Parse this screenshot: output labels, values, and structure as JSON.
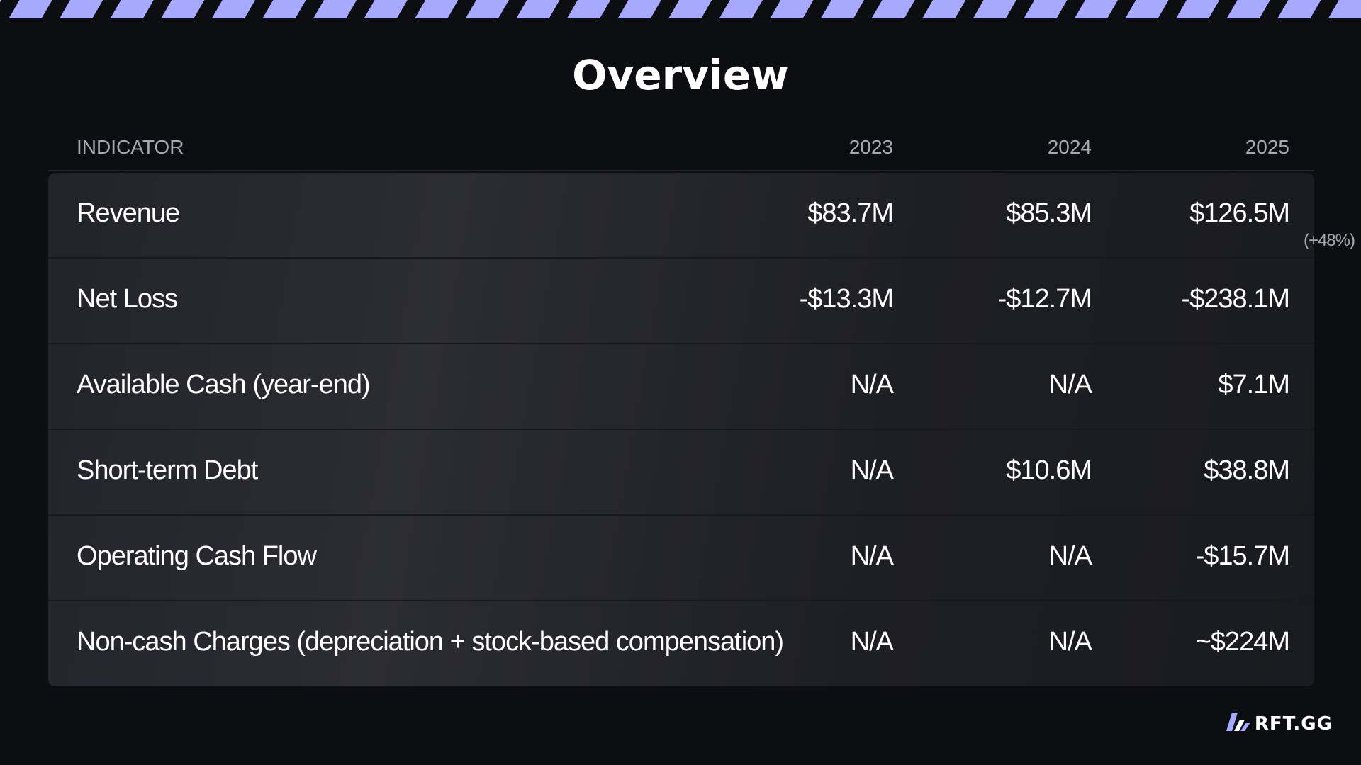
{
  "slide": {
    "title": "Overview"
  },
  "table": {
    "headers": [
      "INDICATOR",
      "2023",
      "2024",
      "2025"
    ],
    "rows": [
      {
        "label": "Revenue",
        "y2023": "$83.7M",
        "y2024": "$85.3M",
        "y2025": "$126.5M",
        "note": "(+48%)"
      },
      {
        "label": "Net Loss",
        "y2023": "-$13.3M",
        "y2024": "-$12.7M",
        "y2025": "-$238.1M",
        "note": ""
      },
      {
        "label": "Available Cash (year-end)",
        "y2023": "N/A",
        "y2024": "N/A",
        "y2025": "$7.1M",
        "note": ""
      },
      {
        "label": "Short-term Debt",
        "y2023": "N/A",
        "y2024": "$10.6M",
        "y2025": "$38.8M",
        "note": ""
      },
      {
        "label": "Operating Cash Flow",
        "y2023": "N/A",
        "y2024": "N/A",
        "y2025": "-$15.7M",
        "note": ""
      },
      {
        "label": "Non-cash Charges (depreciation + stock-based compensation)",
        "y2023": "N/A",
        "y2024": "N/A",
        "y2025": "~$224M",
        "note": ""
      }
    ]
  },
  "brand": {
    "name": "RFT.GG",
    "icon": "rft-logo-icon"
  },
  "colors": {
    "accent": "#a7a9ff",
    "background": "#0d0e12",
    "muted_text": "#a8a9b3"
  }
}
